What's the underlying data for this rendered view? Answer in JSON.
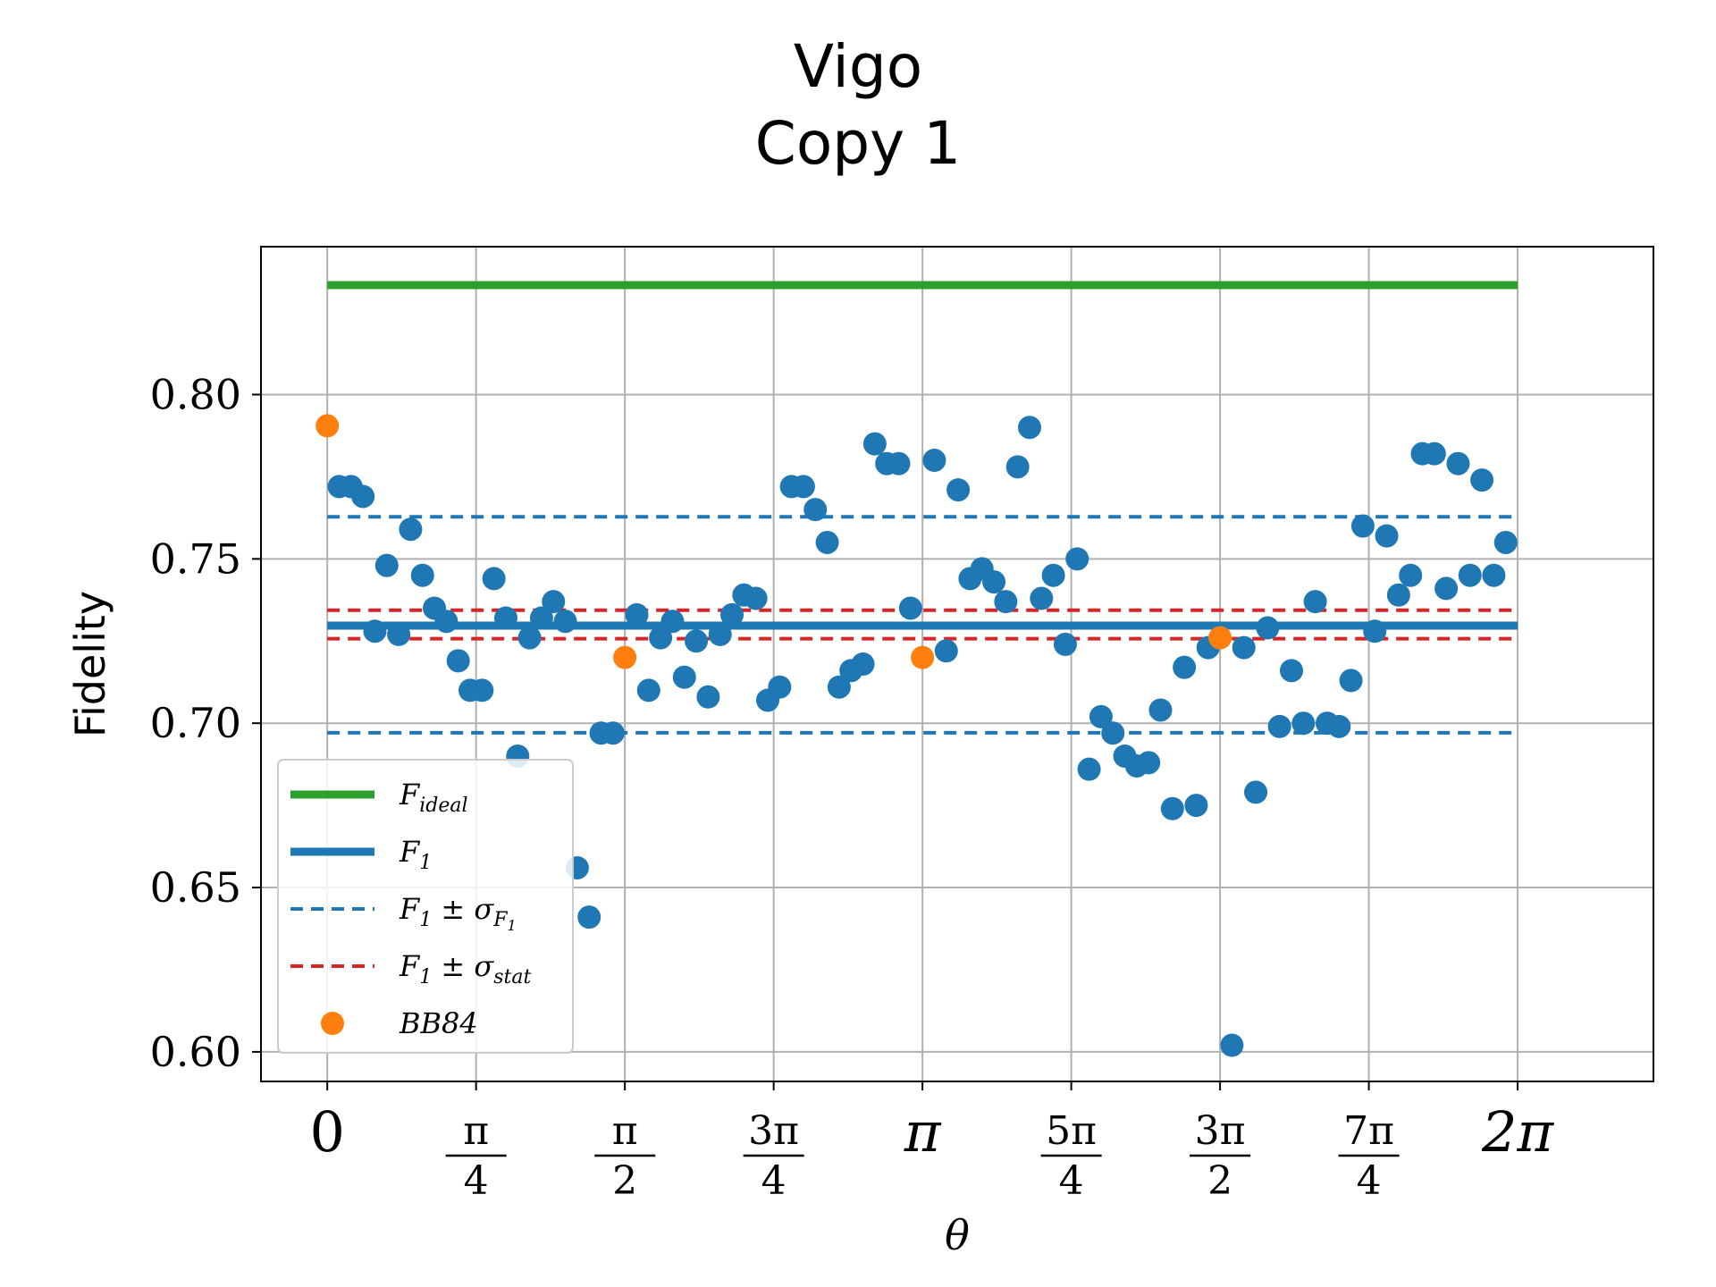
{
  "chart_data": {
    "type": "scatter",
    "title_lines": [
      "Vigo",
      "Copy 1"
    ],
    "xlabel": "θ",
    "ylabel": "Fidelity",
    "xlim": [
      -0.35,
      7.0
    ],
    "ylim": [
      0.591,
      0.845
    ],
    "grid": true,
    "legend_position": "lower-left",
    "x_ticks": [
      {
        "value": 0.0,
        "type": "plain",
        "label": "0"
      },
      {
        "value": 0.7854,
        "type": "frac",
        "num": "π",
        "den": "4"
      },
      {
        "value": 1.5708,
        "type": "frac",
        "num": "π",
        "den": "2"
      },
      {
        "value": 2.3562,
        "type": "frac",
        "num": "3π",
        "den": "4"
      },
      {
        "value": 3.1416,
        "type": "plain",
        "label": "π"
      },
      {
        "value": 3.927,
        "type": "frac",
        "num": "5π",
        "den": "4"
      },
      {
        "value": 4.7124,
        "type": "frac",
        "num": "3π",
        "den": "2"
      },
      {
        "value": 5.4978,
        "type": "frac",
        "num": "7π",
        "den": "4"
      },
      {
        "value": 6.2832,
        "type": "plain",
        "label": "2π"
      }
    ],
    "y_ticks": [
      {
        "value": 0.6,
        "label": "0.60"
      },
      {
        "value": 0.65,
        "label": "0.65"
      },
      {
        "value": 0.7,
        "label": "0.70"
      },
      {
        "value": 0.75,
        "label": "0.75"
      },
      {
        "value": 0.8,
        "label": "0.80"
      }
    ],
    "lines": {
      "F_ideal": {
        "y": 0.8333,
        "color": "#2ca02c",
        "x_range": [
          0,
          6.2832
        ]
      },
      "F_1": {
        "y": 0.7297,
        "color": "#1f77b4",
        "x_range": [
          0,
          6.2832
        ]
      },
      "F_1_pm_sigma_F1": {
        "y": [
          0.6971,
          0.7628
        ],
        "color": "#1f77b4",
        "style": "dashed",
        "x_range": [
          0,
          6.2832
        ]
      },
      "F_1_pm_sigma_stat": {
        "y": [
          0.7257,
          0.7344
        ],
        "color": "#d62728",
        "style": "dashed",
        "x_range": [
          0,
          6.2832
        ]
      }
    },
    "scatter": {
      "color": "#1f77b4",
      "x": [
        0.0628,
        0.1257,
        0.1885,
        0.2513,
        0.3142,
        0.377,
        0.4398,
        0.5027,
        0.5655,
        0.6283,
        0.6912,
        0.754,
        0.8168,
        0.8796,
        0.9425,
        1.0053,
        1.0681,
        1.131,
        1.1938,
        1.2566,
        1.3195,
        1.3823,
        1.4451,
        1.508,
        1.6336,
        1.6965,
        1.7593,
        1.8221,
        1.885,
        1.9478,
        2.0106,
        2.0735,
        2.1363,
        2.1991,
        2.2619,
        2.3248,
        2.3876,
        2.4504,
        2.5133,
        2.5761,
        2.6389,
        2.7018,
        2.7646,
        2.8274,
        2.8903,
        2.9531,
        3.0159,
        3.0788,
        3.2044,
        3.2673,
        3.3301,
        3.3929,
        3.4558,
        3.5186,
        3.5814,
        3.6442,
        3.7071,
        3.7699,
        3.8327,
        3.8956,
        3.9584,
        4.0212,
        4.0841,
        4.1469,
        4.2097,
        4.2726,
        4.3354,
        4.3982,
        4.4611,
        4.5239,
        4.5867,
        4.6496,
        4.7752,
        4.8381,
        4.9009,
        4.9637,
        5.0265,
        5.0894,
        5.1522,
        5.215,
        5.2779,
        5.3407,
        5.4035,
        5.4664,
        5.5292,
        5.592,
        5.6549,
        5.7177,
        5.7805,
        5.8434,
        5.9062,
        5.969,
        6.0319,
        6.0947,
        6.1575,
        6.2204
      ],
      "y": [
        0.772,
        0.772,
        0.769,
        0.728,
        0.748,
        0.727,
        0.759,
        0.745,
        0.735,
        0.731,
        0.719,
        0.71,
        0.71,
        0.744,
        0.732,
        0.69,
        0.726,
        0.732,
        0.737,
        0.731,
        0.656,
        0.641,
        0.697,
        0.697,
        0.733,
        0.71,
        0.726,
        0.731,
        0.714,
        0.725,
        0.708,
        0.727,
        0.733,
        0.739,
        0.738,
        0.707,
        0.711,
        0.772,
        0.772,
        0.765,
        0.755,
        0.711,
        0.716,
        0.718,
        0.785,
        0.779,
        0.779,
        0.735,
        0.78,
        0.722,
        0.771,
        0.744,
        0.747,
        0.743,
        0.737,
        0.778,
        0.79,
        0.738,
        0.745,
        0.724,
        0.75,
        0.686,
        0.702,
        0.697,
        0.69,
        0.687,
        0.688,
        0.704,
        0.674,
        0.717,
        0.675,
        0.723,
        0.602,
        0.723,
        0.679,
        0.729,
        0.699,
        0.716,
        0.7,
        0.737,
        0.7,
        0.699,
        0.713,
        0.76,
        0.728,
        0.757,
        0.739,
        0.745,
        0.782,
        0.782,
        0.741,
        0.779,
        0.745,
        0.774,
        0.745,
        0.755
      ]
    },
    "bb84": {
      "color": "#ff7f0e",
      "x": [
        0.0,
        1.5708,
        3.1416,
        4.7124
      ],
      "y": [
        0.7905,
        0.72,
        0.72,
        0.726
      ]
    },
    "legend": [
      {
        "key": "F_ideal",
        "kind": "solid",
        "color": "#2ca02c",
        "base": "F",
        "sub": "ideal",
        "op": "",
        "sig_sub": "",
        "sig_subsub": ""
      },
      {
        "key": "F_1",
        "kind": "solid",
        "color": "#1f77b4",
        "base": "F",
        "sub": "1",
        "op": "",
        "sig_sub": "",
        "sig_subsub": ""
      },
      {
        "key": "F_1_pm_sigma_F1",
        "kind": "dashed",
        "color": "#1f77b4",
        "base": "F",
        "sub": "1",
        "op": "± σ",
        "sig_sub": "F",
        "sig_subsub": "1"
      },
      {
        "key": "F_1_pm_sigma_stat",
        "kind": "dashed",
        "color": "#d62728",
        "base": "F",
        "sub": "1",
        "op": "± σ",
        "sig_sub": "stat",
        "sig_subsub": ""
      },
      {
        "key": "bb84",
        "kind": "marker",
        "color": "#ff7f0e",
        "base": "BB84",
        "sub": "",
        "op": "",
        "sig_sub": "",
        "sig_subsub": ""
      }
    ]
  }
}
